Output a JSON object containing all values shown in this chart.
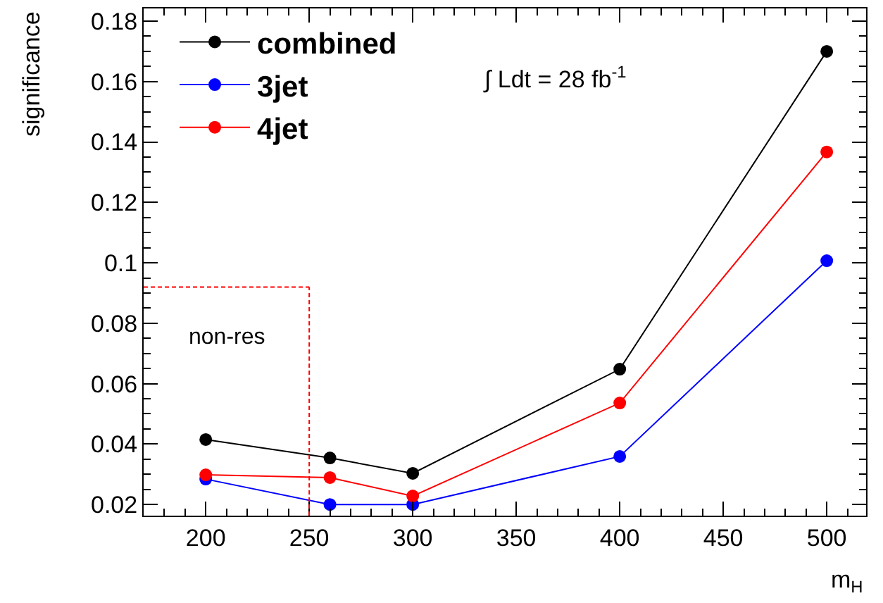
{
  "chart_data": {
    "type": "line",
    "xlabel": "m$_{H}$",
    "ylabel": "significance",
    "x": [
      200,
      260,
      300,
      400,
      500
    ],
    "series": [
      {
        "name": "combined",
        "color": "#000000",
        "values": [
          0.0415,
          0.0354,
          0.0303,
          0.0648,
          0.17
        ]
      },
      {
        "name": "3jet",
        "color": "#0000ff",
        "values": [
          0.0284,
          0.02,
          0.02,
          0.0359,
          0.1007
        ]
      },
      {
        "name": "4jet",
        "color": "#ff0000",
        "values": [
          0.0298,
          0.0289,
          0.0228,
          0.0536,
          0.1367
        ]
      }
    ],
    "xlim": [
      170,
      519
    ],
    "ylim": [
      0.0163,
      0.1842
    ],
    "xticks": [
      200,
      250,
      300,
      350,
      400,
      450,
      500
    ],
    "yticks": [
      {
        "value": 0.02,
        "label": "0.02"
      },
      {
        "value": 0.04,
        "label": "0.04"
      },
      {
        "value": 0.06,
        "label": "0.06"
      },
      {
        "value": 0.08,
        "label": "0.08"
      },
      {
        "value": 0.1,
        "label": "0.1"
      },
      {
        "value": 0.12,
        "label": "0.12"
      },
      {
        "value": 0.14,
        "label": "0.14"
      },
      {
        "value": 0.16,
        "label": "0.16"
      },
      {
        "value": 0.18,
        "label": "0.18"
      }
    ],
    "ref_lines": [
      {
        "axis": "x",
        "value": 250,
        "label": "non-res",
        "color": "#ff0000",
        "line_style": "dashed"
      },
      {
        "axis": "y",
        "value": 0.092,
        "label": null,
        "color": "#ff0000",
        "line_style": "dashed"
      }
    ],
    "annotations": [
      "∫ Ldt = 28 fb$^{-1}$"
    ],
    "legend": "top left",
    "grid": false,
    "marker": "circle",
    "line_style": "solid"
  }
}
